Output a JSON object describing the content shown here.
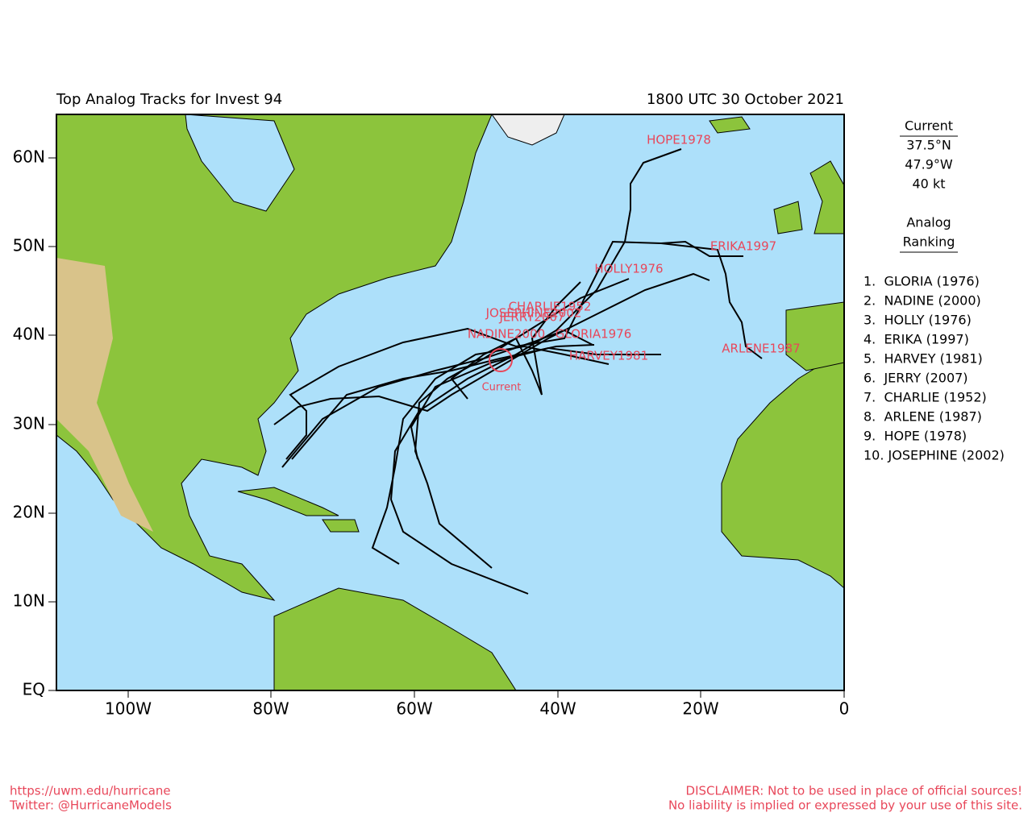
{
  "header": {
    "title": "Top Analog Tracks for Invest 94",
    "date": "1800 UTC 30 October 2021"
  },
  "lat_labels": [
    "60N",
    "50N",
    "40N",
    "30N",
    "20N",
    "10N",
    "EQ"
  ],
  "lon_labels": [
    "100W",
    "80W",
    "60W",
    "40W",
    "20W",
    "0"
  ],
  "track_labels": [
    "HOPE1978",
    "ERIKA1997",
    "HOLLY1976",
    "CHARLIE1952",
    "JOSEPHINE2002",
    "JERRY2007",
    "NADINE2000",
    "GLORIA1976",
    "HARVEY1981",
    "ARLENE1987",
    "Current"
  ],
  "current": {
    "heading": "Current",
    "lat": "37.5°N",
    "lon": "47.9°W",
    "wind": "40 kt"
  },
  "ranking": {
    "heading": [
      "Analog",
      "Ranking"
    ],
    "items": [
      "1.  GLORIA (1976)",
      "2.  NADINE (2000)",
      "3.  HOLLY (1976)",
      "4.  ERIKA (1997)",
      "5.  HARVEY (1981)",
      "6.  JERRY (2007)",
      "7.  CHARLIE (1952)",
      "8.  ARLENE (1987)",
      "9.  HOPE (1978)",
      "10. JOSEPHINE (2002)"
    ]
  },
  "footer": {
    "url": "https://uwm.edu/hurricane",
    "twitter": "Twitter: @HurricaneModels",
    "disclaimer": [
      "DISCLAIMER: Not to be used in place of official sources!",
      "No liability is implied or expressed by your use of this site."
    ]
  }
}
